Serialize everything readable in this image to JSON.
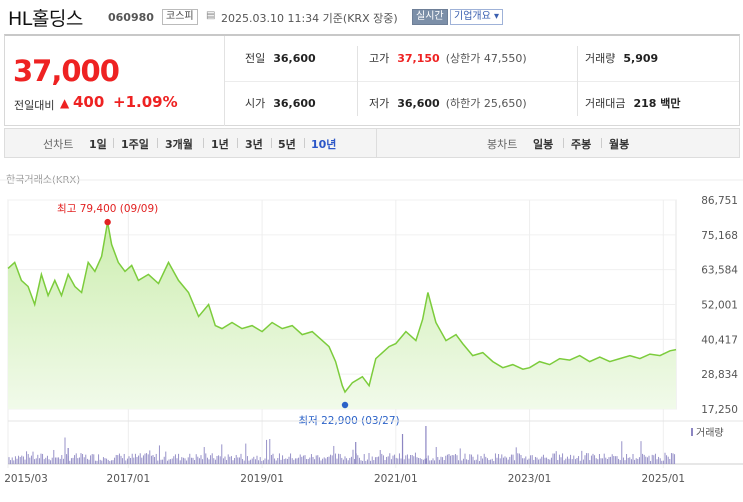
{
  "header": {
    "name": "HL홀딩스",
    "code": "060980",
    "market": "코스피",
    "time": "2025.03.10 11:34 기준(KRX 장중)",
    "live_label": "실시간",
    "company_info_label": "기업개요 ▾"
  },
  "summary": {
    "price": "37,000",
    "change_label": "전일대비",
    "change_arrow": "▲",
    "change_value": "400",
    "change_pct": "+1.09%",
    "prev_close": {
      "label": "전일",
      "value": "36,600"
    },
    "open": {
      "label": "시가",
      "value": "36,600"
    },
    "high": {
      "label": "고가",
      "value": "37,150",
      "sub": "(상한가 47,550)"
    },
    "low": {
      "label": "저가",
      "value": "36,600",
      "sub": "(하한가 25,650)"
    },
    "volume": {
      "label": "거래량",
      "value": "5,909"
    },
    "amount": {
      "label": "거래대금",
      "value": "218 백만"
    }
  },
  "periods": {
    "line_title": "선차트",
    "line_options": [
      "1일",
      "1주일",
      "3개월",
      "1년",
      "3년",
      "5년",
      "10년"
    ],
    "active": "10년",
    "candle_title": "봉차트",
    "candle_options": [
      "일봉",
      "주봉",
      "월봉"
    ]
  },
  "chart_data": {
    "type": "area",
    "source": "한국거래소(KRX)",
    "y_ticks": [
      "86,751",
      "75,168",
      "63,584",
      "52,001",
      "40,417",
      "28,834",
      "17,250"
    ],
    "ylim": [
      17250,
      86751
    ],
    "x_ticks": [
      "2015/03",
      "2017/01",
      "2019/01",
      "2021/01",
      "2023/01",
      "2025/01"
    ],
    "x_tick_years": [
      2015.2,
      2017.0,
      2019.0,
      2021.0,
      2023.0,
      2025.0
    ],
    "xlim": [
      2015.2,
      2025.19
    ],
    "high_label": "최고 79,400 (09/09)",
    "high_point": {
      "x": 2016.69,
      "y": 79400
    },
    "low_label": "최저 22,900 (03/27)",
    "low_point": {
      "x": 2020.24,
      "y": 22900
    },
    "volume_label": "거래량",
    "colors": {
      "line": "#7ccc3c",
      "fill_top": "#cdeeb0",
      "fill_bottom": "#f1faea",
      "volume": "#8c86c2",
      "high": "#e22222",
      "low": "#2b62c8"
    },
    "series": [
      {
        "x": [
          2015.2,
          2015.3,
          2015.4,
          2015.5,
          2015.6,
          2015.7,
          2015.8,
          2015.9,
          2016.0,
          2016.1,
          2016.2,
          2016.3,
          2016.4,
          2016.5,
          2016.6,
          2016.69,
          2016.75,
          2016.85,
          2016.95,
          2017.05,
          2017.15,
          2017.3,
          2017.45,
          2017.6,
          2017.75,
          2017.9,
          2018.05,
          2018.2,
          2018.3,
          2018.4,
          2018.55,
          2018.7,
          2018.85,
          2019.0,
          2019.15,
          2019.3,
          2019.45,
          2019.6,
          2019.75,
          2019.9,
          2020.0,
          2020.1,
          2020.2,
          2020.24,
          2020.35,
          2020.5,
          2020.6,
          2020.7,
          2020.8,
          2020.9,
          2021.0,
          2021.15,
          2021.3,
          2021.4,
          2021.48,
          2021.6,
          2021.75,
          2021.9,
          2022.0,
          2022.15,
          2022.3,
          2022.45,
          2022.6,
          2022.75,
          2022.9,
          2023.0,
          2023.15,
          2023.3,
          2023.45,
          2023.6,
          2023.75,
          2023.9,
          2024.05,
          2024.2,
          2024.35,
          2024.5,
          2024.65,
          2024.8,
          2024.95,
          2025.1,
          2025.19
        ],
        "y": [
          64000,
          66000,
          60000,
          58000,
          52000,
          62000,
          55000,
          60000,
          55000,
          62000,
          58000,
          56000,
          66000,
          63000,
          68000,
          79400,
          72000,
          66000,
          63000,
          65000,
          60000,
          62000,
          59000,
          66000,
          60000,
          56000,
          48000,
          52000,
          45000,
          44000,
          46000,
          44000,
          45000,
          43000,
          46000,
          44000,
          45000,
          42000,
          43000,
          40000,
          38000,
          33000,
          25000,
          22900,
          26000,
          28000,
          25000,
          34000,
          36000,
          38000,
          39000,
          43000,
          40000,
          47000,
          56000,
          46000,
          40000,
          42000,
          39000,
          35000,
          36000,
          33000,
          31000,
          32000,
          30500,
          31000,
          33000,
          32000,
          34000,
          33500,
          35000,
          33000,
          34500,
          33000,
          34000,
          35000,
          34000,
          35500,
          35000,
          36600,
          37000
        ]
      }
    ]
  }
}
